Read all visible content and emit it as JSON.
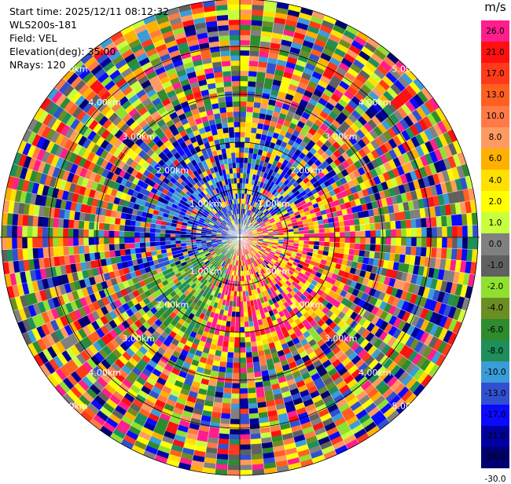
{
  "info": {
    "start_time": "Start time: 2025/12/11 08:12:32",
    "instrument": "WLS200s-181",
    "field": "Field: VEL",
    "elevation": "Elevation(deg): 35.00",
    "nrays": "NRays: 120"
  },
  "ring_labels": [
    "1.00km",
    "2.00km",
    "3.00km",
    "4.00km",
    "5.00km"
  ],
  "colorbar": {
    "unit": "m/s",
    "ticks": [
      "26.0",
      "21.0",
      "17.0",
      "13.0",
      "10.0",
      "8.0",
      "6.0",
      "4.0",
      "2.0",
      "1.0",
      "0.0",
      "-1.0",
      "-2.0",
      "-4.0",
      "-6.0",
      "-8.0",
      "-10.0",
      "-13.0",
      "-17.0",
      "-21.0",
      "-26.0",
      "-30.0"
    ],
    "colors": [
      "#ff1e8c",
      "#ff1010",
      "#ff3a1a",
      "#ff6020",
      "#ff7a45",
      "#ff9a60",
      "#ffb000",
      "#ffe000",
      "#ffff00",
      "#c8ff3c",
      "#808080",
      "#606060",
      "#90e030",
      "#6b8e23",
      "#2e8b2e",
      "#1e8f5a",
      "#3a9cd8",
      "#3050d0",
      "#0a0aff",
      "#0000a0",
      "#000070"
    ]
  }
}
